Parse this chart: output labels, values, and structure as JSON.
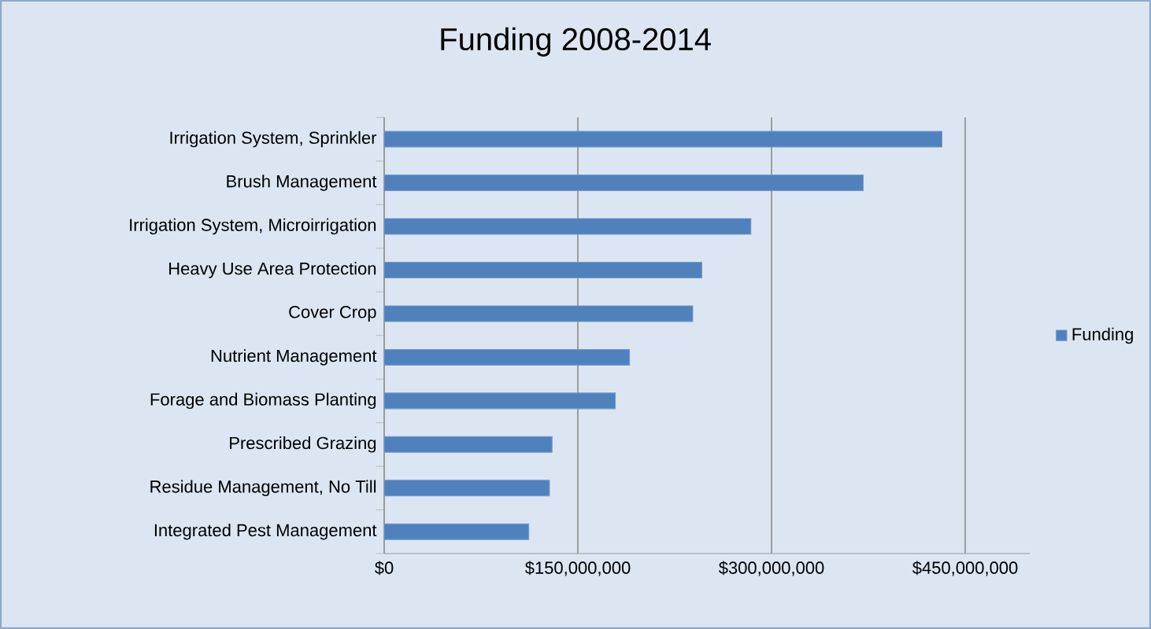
{
  "chart_data": {
    "type": "bar",
    "orientation": "horizontal",
    "title": "Funding 2008-2014",
    "categories": [
      "Irrigation System, Sprinkler",
      "Brush Management",
      "Irrigation System, Microirrigation",
      "Heavy Use Area Protection",
      "Cover Crop",
      "Nutrient Management",
      "Forage and Biomass Planting",
      "Prescribed Grazing",
      "Residue Management, No Till",
      "Integrated Pest Management"
    ],
    "series": [
      {
        "name": "Funding",
        "color": "#4f81bd",
        "values": [
          432000000,
          371000000,
          284000000,
          246000000,
          239000000,
          190000000,
          179000000,
          130000000,
          128000000,
          112000000
        ]
      }
    ],
    "xlim": [
      0,
      500000000
    ],
    "xticks": [
      {
        "value": 0,
        "label": "$0"
      },
      {
        "value": 150000000,
        "label": "$150,000,000"
      },
      {
        "value": 300000000,
        "label": "$300,000,000"
      },
      {
        "value": 450000000,
        "label": "$450,000,000"
      }
    ],
    "grid": "x",
    "legend": "right"
  }
}
